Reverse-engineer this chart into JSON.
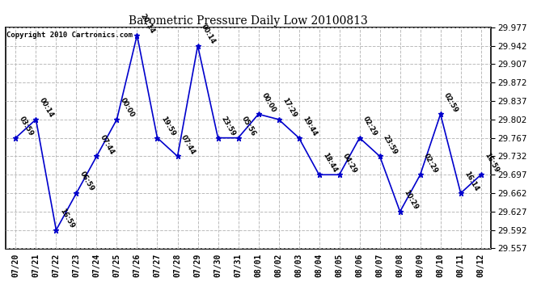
{
  "title": "Barometric Pressure Daily Low 20100813",
  "copyright": "Copyright 2010 Cartronics.com",
  "background_color": "#ffffff",
  "line_color": "#0000cc",
  "point_color": "#0000cc",
  "grid_color": "#bbbbbb",
  "x_labels": [
    "07/20",
    "07/21",
    "07/22",
    "07/23",
    "07/24",
    "07/25",
    "07/26",
    "07/27",
    "07/28",
    "07/29",
    "07/30",
    "07/31",
    "08/01",
    "08/02",
    "08/03",
    "08/04",
    "08/05",
    "08/06",
    "08/07",
    "08/08",
    "08/09",
    "08/10",
    "08/11",
    "08/12"
  ],
  "y_values": [
    29.767,
    29.802,
    29.592,
    29.662,
    29.732,
    29.802,
    29.962,
    29.767,
    29.732,
    29.942,
    29.767,
    29.767,
    29.812,
    29.802,
    29.767,
    29.697,
    29.697,
    29.767,
    29.732,
    29.627,
    29.697,
    29.812,
    29.662,
    29.697
  ],
  "annotations": [
    "03:59",
    "00:14",
    "16:59",
    "06:59",
    "07:44",
    "00:00",
    "20:14",
    "19:59",
    "07:44",
    "00:14",
    "23:59",
    "05:56",
    "00:00",
    "17:29",
    "19:44",
    "18:44",
    "04:29",
    "02:29",
    "23:59",
    "10:29",
    "02:29",
    "02:59",
    "16:14",
    "16:59"
  ],
  "ylim_min": 29.557,
  "ylim_max": 29.977,
  "yticks": [
    29.557,
    29.592,
    29.627,
    29.662,
    29.697,
    29.732,
    29.767,
    29.802,
    29.837,
    29.872,
    29.907,
    29.942,
    29.977
  ]
}
